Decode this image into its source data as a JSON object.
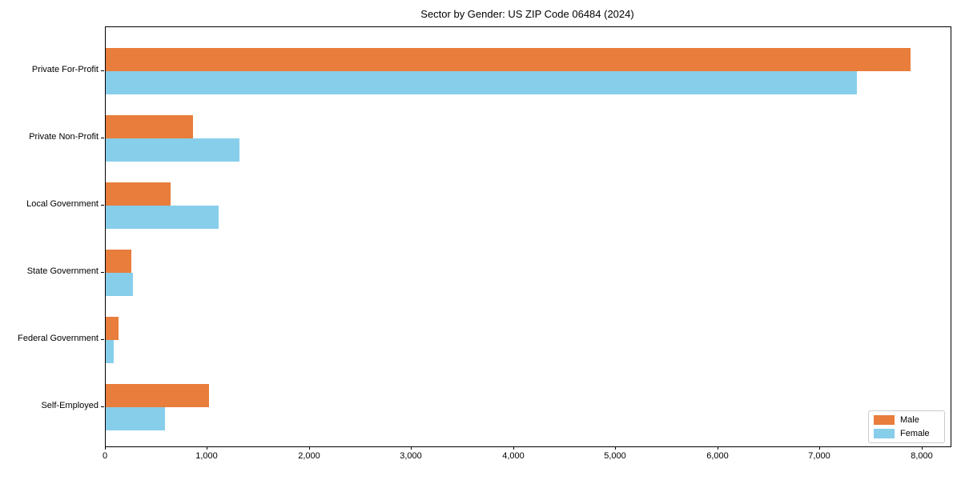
{
  "title": "Sector by Gender: US ZIP Code 06484 (2024)",
  "colors": {
    "male": "#e87d3c",
    "female": "#87ceeb",
    "axis": "#000000",
    "legend_border": "#cccccc",
    "background": "#ffffff"
  },
  "legend": {
    "items": [
      {
        "label": "Male",
        "color": "#e87d3c"
      },
      {
        "label": "Female",
        "color": "#87ceeb"
      }
    ]
  },
  "chart_data": {
    "type": "bar",
    "orientation": "horizontal",
    "title": "Sector by Gender: US ZIP Code 06484 (2024)",
    "categories": [
      "Private For-Profit",
      "Private Non-Profit",
      "Local Government",
      "State Government",
      "Federal Government",
      "Self-Employed"
    ],
    "series": [
      {
        "name": "Male",
        "color": "#e87d3c",
        "values": [
          7880,
          855,
          635,
          250,
          125,
          1010
        ]
      },
      {
        "name": "Female",
        "color": "#87ceeb",
        "values": [
          7360,
          1310,
          1105,
          270,
          80,
          580
        ]
      }
    ],
    "xlabel": "",
    "ylabel": "",
    "xlim": [
      0,
      8275
    ],
    "xticks": [
      0,
      1000,
      2000,
      3000,
      4000,
      5000,
      6000,
      7000,
      8000
    ],
    "xtick_labels": [
      "0",
      "1,000",
      "2,000",
      "3,000",
      "4,000",
      "5,000",
      "6,000",
      "7,000",
      "8,000"
    ],
    "grid": false,
    "legend_position": "lower right"
  }
}
